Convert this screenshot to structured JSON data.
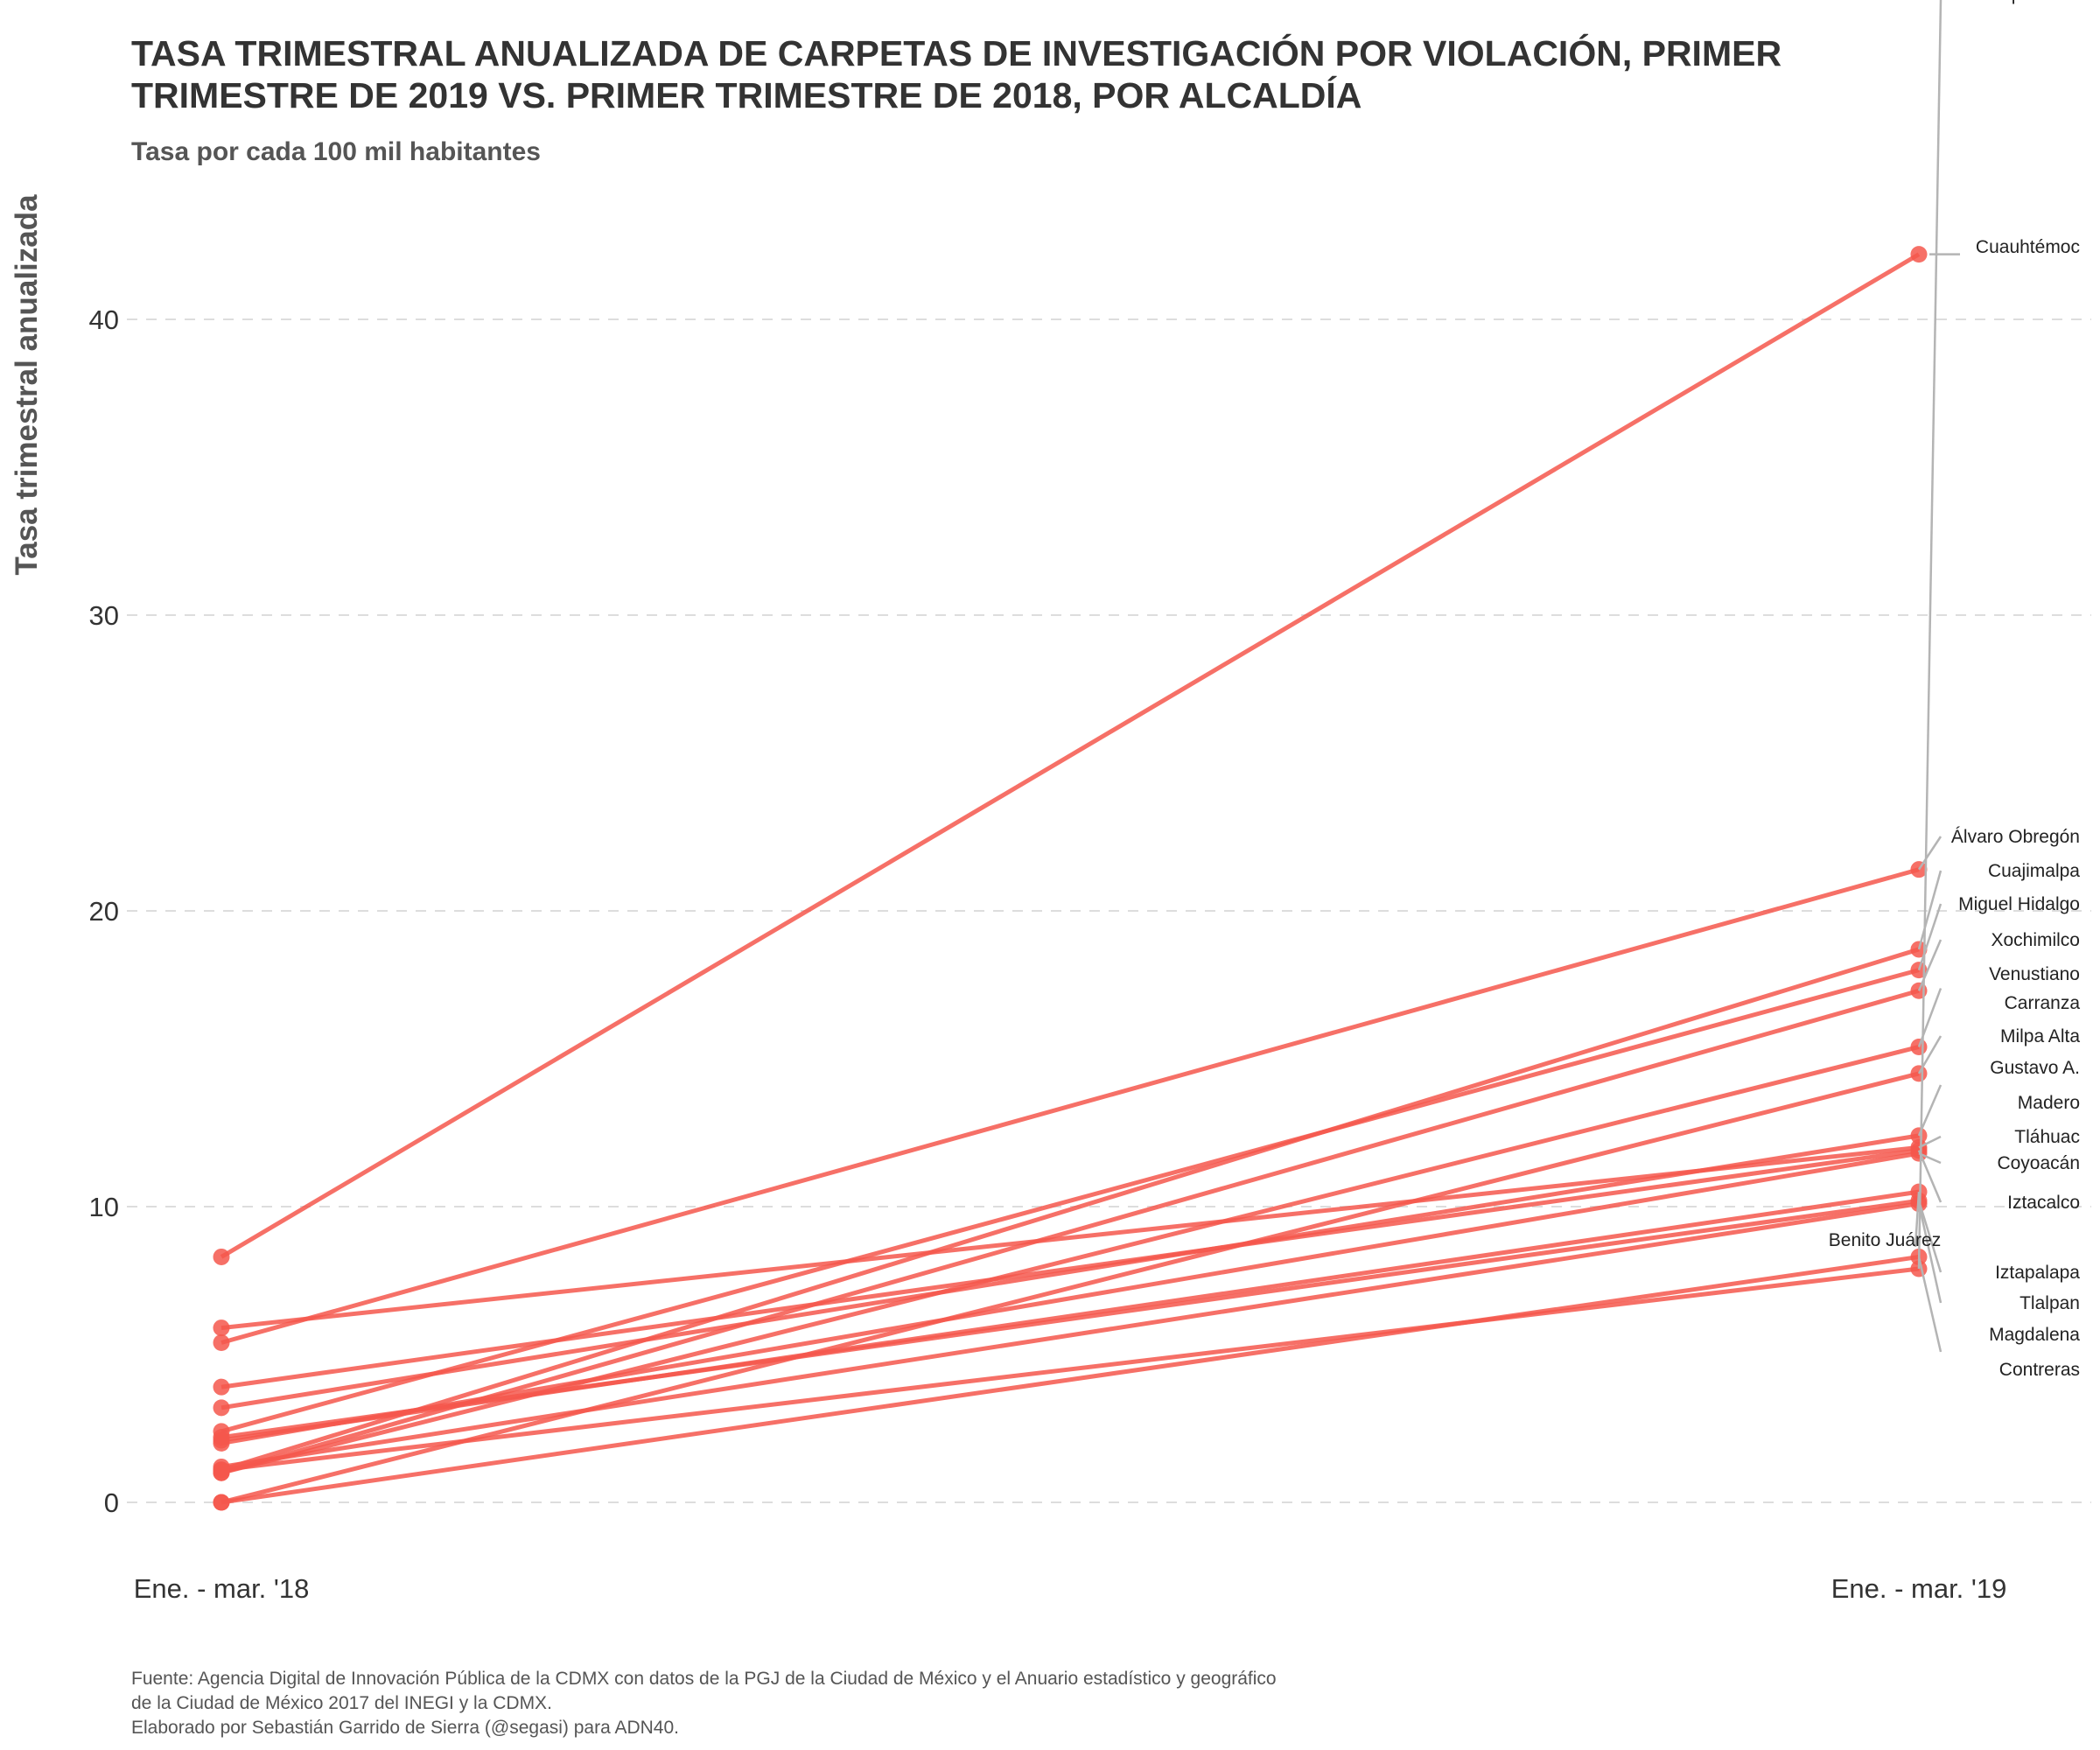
{
  "chart_data": {
    "type": "line",
    "title_lines": [
      "TASA TRIMESTRAL ANUALIZADA DE CARPETAS DE INVESTIGACIÓN POR VIOLACIÓN, PRIMER",
      "TRIMESTRE DE 2019 VS. PRIMER TRIMESTRE DE 2018, POR ALCALDÍA"
    ],
    "subtitle": "Tasa por cada 100 mil habitantes",
    "xlabel": "",
    "ylabel": "Tasa trimestral anualizada",
    "x": [
      "Ene. - mar. '18",
      "Ene. - mar. '19"
    ],
    "yticks": [
      0,
      10,
      20,
      30,
      40
    ],
    "ylim": [
      -1.8,
      44.5
    ],
    "grid": "horizontal, dashed",
    "legend": "none",
    "color": "#f4574c",
    "leader_color": "#b4b4b4",
    "series": [
      {
        "values": [
          8.3,
          42.2
        ],
        "label_lines": [
          "Cuauhtémoc"
        ]
      },
      {
        "values": [
          5.4,
          21.4
        ],
        "label_lines": [
          "Álvaro Obregón"
        ]
      },
      {
        "values": [
          1.1,
          18.7
        ],
        "label_lines": [
          "Cuajimalpa"
        ]
      },
      {
        "values": [
          2.4,
          18.0
        ],
        "label_lines": [
          "Miguel Hidalgo"
        ]
      },
      {
        "values": [
          1.0,
          17.3
        ],
        "label_lines": [
          "Xochimilco"
        ]
      },
      {
        "values": [
          1.0,
          15.4
        ],
        "label_lines": [
          "Venustiano",
          "Carranza"
        ]
      },
      {
        "values": [
          0.0,
          14.5
        ],
        "label_lines": [
          "Milpa Alta"
        ]
      },
      {
        "values": [
          3.2,
          12.4
        ],
        "label_lines": [
          "Gustavo A.",
          "Madero"
        ]
      },
      {
        "values": [
          5.9,
          12.0
        ],
        "label_lines": [
          "Tláhuac"
        ]
      },
      {
        "values": [
          2.0,
          11.8
        ],
        "label_lines": [
          "Coyoacán"
        ]
      },
      {
        "values": [
          3.9,
          11.9
        ],
        "label_lines": [
          "Iztacalco"
        ]
      },
      {
        "values": [
          2.1,
          10.5
        ],
        "label_lines": [
          "Benito Juárez"
        ]
      },
      {
        "values": [
          2.2,
          10.2
        ],
        "label_lines": [
          "Iztapalapa"
        ]
      },
      {
        "values": [
          1.2,
          10.1
        ],
        "label_lines": [
          "Tlalpan"
        ]
      },
      {
        "values": [
          0.0,
          8.3
        ],
        "label_lines": [
          "Magdalena",
          "Contreras"
        ]
      },
      {
        "values": [
          1.1,
          7.9
        ],
        "label_lines": [
          "Azcapotzalco"
        ]
      }
    ]
  },
  "caption_lines": [
    "Fuente: Agencia Digital de Innovación Pública de la CDMX con datos de la PGJ de la Ciudad de México y el Anuario estadístico y geográfico",
    "de la Ciudad de México 2017 del INEGI y la CDMX.",
    "Elaborado por Sebastián Garrido de Sierra (@segasi) para ADN40."
  ]
}
